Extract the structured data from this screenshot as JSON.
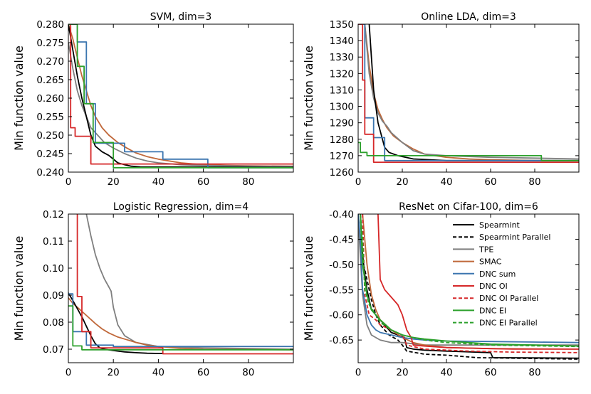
{
  "chart_data": [
    {
      "type": "line",
      "title": "SVM, dim=3",
      "xlabel": "",
      "ylabel": "Min function value",
      "xlim": [
        0,
        100
      ],
      "ylim": [
        0.24,
        0.28
      ],
      "xticks": [
        0,
        20,
        40,
        60,
        80
      ],
      "xtick_labels": [
        "0",
        "20",
        "40",
        "60",
        "80"
      ],
      "yticks": [
        0.24,
        0.245,
        0.25,
        0.255,
        0.26,
        0.265,
        0.27,
        0.275,
        0.28
      ],
      "ytick_labels": [
        "0.240",
        "0.245",
        "0.250",
        "0.255",
        "0.260",
        "0.265",
        "0.270",
        "0.275",
        "0.280"
      ],
      "series": [
        {
          "name": "SMAC",
          "color": "#c0683a",
          "x": [
            0,
            2,
            4,
            6,
            8,
            10,
            12,
            15,
            18,
            22,
            26,
            30,
            35,
            40,
            50,
            60,
            70,
            80,
            100
          ],
          "y": [
            0.28,
            0.276,
            0.271,
            0.266,
            0.262,
            0.258,
            0.255,
            0.252,
            0.25,
            0.248,
            0.2465,
            0.2452,
            0.2442,
            0.2435,
            0.2425,
            0.242,
            0.2418,
            0.2417,
            0.2416
          ]
        },
        {
          "name": "TPE",
          "color": "#7f7f7f",
          "x": [
            0,
            2,
            4,
            6,
            8,
            10,
            13,
            16,
            20,
            25,
            30,
            35,
            40,
            50,
            60,
            80,
            100
          ],
          "y": [
            0.275,
            0.268,
            0.262,
            0.258,
            0.255,
            0.252,
            0.25,
            0.248,
            0.2465,
            0.245,
            0.2438,
            0.243,
            0.2425,
            0.242,
            0.2418,
            0.2416,
            0.2415
          ]
        },
        {
          "name": "Spearmint",
          "color": "#000000",
          "x": [
            0,
            2,
            4,
            6,
            8,
            10,
            12,
            15,
            18,
            22,
            25,
            28,
            32,
            100
          ],
          "y": [
            0.28,
            0.273,
            0.266,
            0.26,
            0.255,
            0.25,
            0.247,
            0.2455,
            0.2445,
            0.2425,
            0.242,
            0.2416,
            0.2414,
            0.2413
          ]
        },
        {
          "name": "DNC sum",
          "color": "#3b75af",
          "x": [
            0,
            4,
            4,
            8,
            8,
            12,
            12,
            20,
            20,
            25,
            25,
            42,
            42,
            62,
            62,
            100
          ],
          "y": [
            0.28,
            0.28,
            0.2752,
            0.2752,
            0.2585,
            0.2585,
            0.2478,
            0.2478,
            0.2478,
            0.2478,
            0.2455,
            0.2455,
            0.2435,
            0.2435,
            0.2412,
            0.2412
          ]
        },
        {
          "name": "DNC OI",
          "color": "#d62728",
          "x": [
            0,
            1,
            1,
            3,
            3,
            10,
            10,
            100
          ],
          "y": [
            0.28,
            0.28,
            0.252,
            0.252,
            0.2497,
            0.2497,
            0.2422,
            0.2422
          ]
        },
        {
          "name": "DNC EI",
          "color": "#2ca02c",
          "x": [
            0,
            4,
            4,
            7,
            7,
            11,
            11,
            20,
            20,
            100
          ],
          "y": [
            0.28,
            0.28,
            0.2686,
            0.2686,
            0.2585,
            0.2585,
            0.248,
            0.248,
            0.2412,
            0.2412
          ]
        }
      ]
    },
    {
      "type": "line",
      "title": "Online LDA, dim=3",
      "xlabel": "",
      "ylabel": "Min function value",
      "xlim": [
        0,
        100
      ],
      "ylim": [
        1260,
        1350
      ],
      "xticks": [
        0,
        20,
        40,
        60,
        80
      ],
      "xtick_labels": [
        "0",
        "20",
        "40",
        "60",
        "80"
      ],
      "yticks": [
        1260,
        1270,
        1280,
        1290,
        1300,
        1310,
        1320,
        1330,
        1340,
        1350
      ],
      "ytick_labels": [
        "1260",
        "1270",
        "1280",
        "1290",
        "1300",
        "1310",
        "1320",
        "1330",
        "1340",
        "1350"
      ],
      "series": [
        {
          "name": "SMAC",
          "color": "#c0683a",
          "x": [
            3,
            5,
            7,
            9,
            11,
            13,
            16,
            20,
            25,
            30,
            40,
            50,
            60,
            80,
            100
          ],
          "y": [
            1350,
            1325,
            1308,
            1298,
            1292,
            1287,
            1282,
            1278,
            1274,
            1271,
            1269,
            1268,
            1267.5,
            1267,
            1267
          ]
        },
        {
          "name": "TPE",
          "color": "#7f7f7f",
          "x": [
            3,
            5,
            7,
            9,
            11,
            13,
            15,
            20,
            25,
            30,
            40,
            60,
            100
          ],
          "y": [
            1350,
            1320,
            1305,
            1296,
            1291,
            1288,
            1284,
            1278,
            1273,
            1271,
            1270,
            1269,
            1268
          ]
        },
        {
          "name": "Spearmint",
          "color": "#000000",
          "x": [
            5,
            6,
            7,
            8,
            9,
            10,
            11,
            12,
            14,
            18,
            25,
            40,
            100
          ],
          "y": [
            1350,
            1330,
            1310,
            1300,
            1290,
            1285,
            1280,
            1275,
            1272,
            1270,
            1268,
            1267,
            1267
          ]
        },
        {
          "name": "DNC sum",
          "color": "#3b75af",
          "x": [
            0,
            3,
            3,
            7,
            7,
            12,
            12,
            100
          ],
          "y": [
            1350,
            1350,
            1293,
            1293,
            1281,
            1281,
            1267,
            1267
          ]
        },
        {
          "name": "DNC OI",
          "color": "#d62728",
          "x": [
            0,
            2,
            2,
            3,
            3,
            7,
            7,
            100
          ],
          "y": [
            1350,
            1350,
            1316,
            1316,
            1283,
            1283,
            1266,
            1266
          ]
        },
        {
          "name": "DNC EI",
          "color": "#2ca02c",
          "x": [
            0,
            1,
            1,
            4,
            4,
            83,
            83,
            100
          ],
          "y": [
            1278,
            1278,
            1272,
            1272,
            1270,
            1270,
            1267,
            1267
          ]
        }
      ]
    },
    {
      "type": "line",
      "title": "Logistic Regression, dim=4",
      "xlabel": "",
      "ylabel": "Min function value",
      "xlim": [
        0,
        100
      ],
      "ylim": [
        0.065,
        0.12
      ],
      "xticks": [
        0,
        20,
        40,
        60,
        80
      ],
      "xtick_labels": [
        "0",
        "20",
        "40",
        "60",
        "80"
      ],
      "yticks": [
        0.07,
        0.08,
        0.09,
        0.1,
        0.11,
        0.12
      ],
      "ytick_labels": [
        "0.07",
        "0.08",
        "0.09",
        "0.10",
        "0.11",
        "0.12"
      ],
      "series": [
        {
          "name": "TPE",
          "color": "#7f7f7f",
          "x": [
            8,
            10,
            12,
            14,
            16,
            18,
            19,
            20,
            22,
            25,
            30,
            40,
            60,
            100
          ],
          "y": [
            0.12,
            0.112,
            0.105,
            0.1,
            0.096,
            0.093,
            0.0915,
            0.0855,
            0.079,
            0.075,
            0.0725,
            0.071,
            0.0705,
            0.07
          ]
        },
        {
          "name": "SMAC",
          "color": "#c0683a",
          "x": [
            0,
            2,
            4,
            6,
            8,
            10,
            12,
            15,
            18,
            22,
            26,
            30,
            35,
            40,
            50,
            60,
            100
          ],
          "y": [
            0.089,
            0.087,
            0.0855,
            0.084,
            0.0825,
            0.081,
            0.0795,
            0.0775,
            0.076,
            0.0745,
            0.0735,
            0.0725,
            0.0715,
            0.071,
            0.0703,
            0.07,
            0.0698
          ]
        },
        {
          "name": "Spearmint",
          "color": "#000000",
          "x": [
            0,
            2,
            4,
            6,
            8,
            10,
            12,
            14,
            16,
            20,
            25,
            30,
            35,
            42
          ],
          "y": [
            0.0908,
            0.088,
            0.085,
            0.082,
            0.0785,
            0.075,
            0.072,
            0.0705,
            0.07,
            0.0695,
            0.069,
            0.0687,
            0.0685,
            0.0684
          ]
        },
        {
          "name": "DNC sum",
          "color": "#3b75af",
          "x": [
            0,
            2,
            2,
            8,
            8,
            20,
            20,
            100
          ],
          "y": [
            0.0905,
            0.0905,
            0.0765,
            0.0765,
            0.0715,
            0.0715,
            0.071,
            0.071
          ]
        },
        {
          "name": "DNC OI",
          "color": "#d62728",
          "x": [
            4,
            4,
            6,
            6,
            10,
            10,
            42,
            42,
            100
          ],
          "y": [
            0.12,
            0.0895,
            0.0895,
            0.0765,
            0.0765,
            0.0705,
            0.0705,
            0.0683,
            0.0683
          ]
        },
        {
          "name": "DNC EI",
          "color": "#2ca02c",
          "x": [
            0,
            2,
            2,
            6,
            6,
            100
          ],
          "y": [
            0.086,
            0.086,
            0.0712,
            0.0712,
            0.0698,
            0.0698
          ]
        }
      ]
    },
    {
      "type": "line",
      "title": "ResNet on Cifar-100, dim=6",
      "xlabel": "",
      "ylabel": "Min function value",
      "xlim": [
        0,
        100
      ],
      "ylim": [
        -0.695,
        -0.4
      ],
      "xticks": [
        0,
        20,
        40,
        60,
        80
      ],
      "xtick_labels": [
        "0",
        "20",
        "40",
        "60",
        "80"
      ],
      "yticks": [
        -0.65,
        -0.6,
        -0.55,
        -0.5,
        -0.45,
        -0.4
      ],
      "ytick_labels": [
        "-0.65",
        "-0.60",
        "-0.55",
        "-0.50",
        "-0.45",
        "-0.40"
      ],
      "series": [
        {
          "name": "Spearmint",
          "color": "#000000",
          "dashed": false,
          "x": [
            1,
            2,
            3,
            4,
            6,
            8,
            10,
            12,
            15,
            18,
            21,
            22,
            25,
            30,
            40,
            60,
            61,
            100
          ],
          "y": [
            -0.4,
            -0.48,
            -0.52,
            -0.55,
            -0.59,
            -0.6,
            -0.61,
            -0.62,
            -0.635,
            -0.64,
            -0.645,
            -0.665,
            -0.668,
            -0.67,
            -0.672,
            -0.675,
            -0.685,
            -0.686
          ]
        },
        {
          "name": "Spearmint Parallel",
          "color": "#000000",
          "dashed": true,
          "x": [
            1,
            2,
            4,
            6,
            8,
            10,
            14,
            18,
            20,
            22,
            30,
            40,
            54,
            100
          ],
          "y": [
            -0.4,
            -0.49,
            -0.53,
            -0.57,
            -0.6,
            -0.62,
            -0.64,
            -0.65,
            -0.66,
            -0.672,
            -0.678,
            -0.68,
            -0.685,
            -0.688
          ]
        },
        {
          "name": "TPE",
          "color": "#7f7f7f",
          "dashed": false,
          "x": [
            0,
            2,
            4,
            6,
            8,
            10,
            15,
            20,
            30,
            50,
            100
          ],
          "y": [
            -0.41,
            -0.56,
            -0.62,
            -0.64,
            -0.645,
            -0.65,
            -0.655,
            -0.655,
            -0.66,
            -0.66,
            -0.66
          ]
        },
        {
          "name": "SMAC",
          "color": "#c0683a",
          "dashed": false,
          "x": [
            2,
            4,
            6,
            8,
            10,
            15,
            20,
            25,
            30,
            40,
            60,
            100
          ],
          "y": [
            -0.4,
            -0.5,
            -0.56,
            -0.59,
            -0.61,
            -0.63,
            -0.645,
            -0.655,
            -0.66,
            -0.665,
            -0.667,
            -0.668
          ]
        },
        {
          "name": "DNC sum",
          "color": "#3b75af",
          "dashed": false,
          "x": [
            0,
            1,
            2,
            4,
            6,
            8,
            10,
            15,
            20,
            25,
            30,
            40,
            60,
            100
          ],
          "y": [
            -0.4,
            -0.45,
            -0.55,
            -0.6,
            -0.62,
            -0.63,
            -0.635,
            -0.64,
            -0.645,
            -0.648,
            -0.65,
            -0.652,
            -0.653,
            -0.655
          ]
        },
        {
          "name": "DNC OI",
          "color": "#d62728",
          "dashed": false,
          "x": [
            9,
            10,
            12,
            14,
            16,
            18,
            20,
            22,
            24,
            25,
            30,
            40,
            50,
            60,
            70,
            80,
            100
          ],
          "y": [
            -0.4,
            -0.53,
            -0.55,
            -0.56,
            -0.57,
            -0.58,
            -0.6,
            -0.63,
            -0.645,
            -0.66,
            -0.662,
            -0.665,
            -0.666,
            -0.667,
            -0.668,
            -0.668,
            -0.668
          ]
        },
        {
          "name": "DNC OI Parallel",
          "color": "#d62728",
          "dashed": true,
          "x": [
            2,
            3,
            5,
            8,
            10,
            15,
            20,
            22,
            30,
            50,
            70,
            100
          ],
          "y": [
            -0.4,
            -0.56,
            -0.6,
            -0.61,
            -0.62,
            -0.63,
            -0.64,
            -0.66,
            -0.668,
            -0.672,
            -0.674,
            -0.675
          ]
        },
        {
          "name": "DNC EI",
          "color": "#2ca02c",
          "dashed": false,
          "x": [
            1,
            2,
            4,
            6,
            10,
            15,
            20,
            25,
            30,
            40,
            60,
            80,
            100
          ],
          "y": [
            -0.4,
            -0.5,
            -0.56,
            -0.59,
            -0.61,
            -0.63,
            -0.64,
            -0.645,
            -0.648,
            -0.652,
            -0.658,
            -0.66,
            -0.662
          ]
        },
        {
          "name": "DNC EI Parallel",
          "color": "#2ca02c",
          "dashed": true,
          "x": [
            1,
            2,
            3,
            5,
            8,
            10,
            15,
            20,
            25,
            30,
            40,
            60,
            100
          ],
          "y": [
            -0.4,
            -0.45,
            -0.55,
            -0.58,
            -0.6,
            -0.615,
            -0.63,
            -0.64,
            -0.645,
            -0.65,
            -0.655,
            -0.66,
            -0.663
          ]
        }
      ],
      "legend": {
        "position": "top-right",
        "entries": [
          {
            "label": "Spearmint",
            "color": "#000000",
            "dashed": false
          },
          {
            "label": "Spearmint Parallel",
            "color": "#000000",
            "dashed": true
          },
          {
            "label": "TPE",
            "color": "#7f7f7f",
            "dashed": false
          },
          {
            "label": "SMAC",
            "color": "#c0683a",
            "dashed": false
          },
          {
            "label": "DNC sum",
            "color": "#3b75af",
            "dashed": false
          },
          {
            "label": "DNC OI",
            "color": "#d62728",
            "dashed": false
          },
          {
            "label": "DNC OI Parallel",
            "color": "#d62728",
            "dashed": true
          },
          {
            "label": "DNC EI",
            "color": "#2ca02c",
            "dashed": false
          },
          {
            "label": "DNC EI Parallel",
            "color": "#2ca02c",
            "dashed": true
          }
        ]
      }
    }
  ]
}
